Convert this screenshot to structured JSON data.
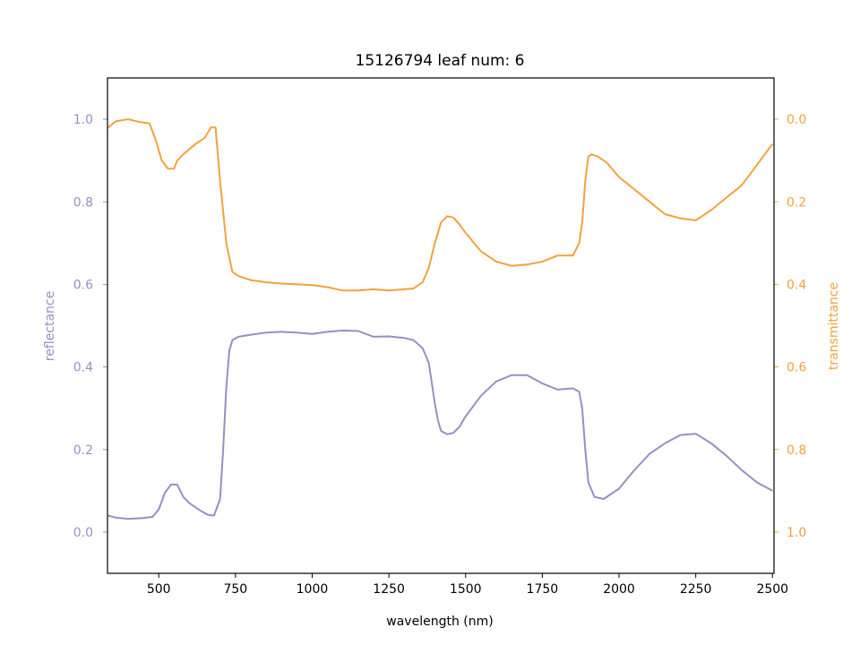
{
  "chart_data": {
    "type": "line",
    "title": "15126794 leaf num: 6",
    "xlabel": "wavelength (nm)",
    "ylabel_left": "reflectance",
    "ylabel_right": "transmittance",
    "xlim": [
      333,
      2505
    ],
    "ylim_left": [
      -0.1,
      1.1
    ],
    "ylim_right": [
      1.1,
      -0.1
    ],
    "right_axis_inverted": true,
    "grid": false,
    "legend": "none",
    "colors": {
      "reflectance": "#9590c4",
      "transmittance": "#f0a33c"
    },
    "x_ticks": [
      "500",
      "750",
      "1000",
      "1250",
      "1500",
      "1750",
      "2000",
      "2250",
      "2500"
    ],
    "y_ticks_left": [
      "0.0",
      "0.2",
      "0.4",
      "0.6",
      "0.8",
      "1.0"
    ],
    "y_ticks_right": [
      "0.0",
      "0.2",
      "0.4",
      "0.6",
      "0.8",
      "1.0"
    ],
    "series": [
      {
        "axis": "left",
        "color": "#9590c4",
        "x": [
          335,
          360,
          400,
          450,
          480,
          500,
          520,
          540,
          560,
          580,
          600,
          620,
          640,
          660,
          680,
          700,
          710,
          720,
          730,
          740,
          760,
          800,
          850,
          900,
          950,
          1000,
          1050,
          1100,
          1150,
          1200,
          1250,
          1300,
          1330,
          1360,
          1380,
          1390,
          1400,
          1410,
          1420,
          1440,
          1460,
          1480,
          1500,
          1550,
          1600,
          1650,
          1700,
          1750,
          1800,
          1850,
          1870,
          1880,
          1890,
          1900,
          1920,
          1950,
          2000,
          2050,
          2100,
          2150,
          2200,
          2250,
          2300,
          2350,
          2400,
          2450,
          2500
        ],
        "values": [
          0.04,
          0.035,
          0.032,
          0.034,
          0.037,
          0.055,
          0.095,
          0.115,
          0.115,
          0.085,
          0.07,
          0.06,
          0.05,
          0.042,
          0.04,
          0.08,
          0.2,
          0.35,
          0.44,
          0.465,
          0.473,
          0.478,
          0.483,
          0.485,
          0.483,
          0.48,
          0.485,
          0.488,
          0.487,
          0.473,
          0.474,
          0.47,
          0.465,
          0.445,
          0.41,
          0.36,
          0.31,
          0.27,
          0.245,
          0.237,
          0.24,
          0.255,
          0.28,
          0.33,
          0.365,
          0.38,
          0.38,
          0.36,
          0.345,
          0.348,
          0.34,
          0.3,
          0.2,
          0.12,
          0.085,
          0.08,
          0.105,
          0.15,
          0.19,
          0.215,
          0.235,
          0.238,
          0.215,
          0.185,
          0.15,
          0.12,
          0.1
        ]
      },
      {
        "axis": "right",
        "color": "#f0a33c",
        "x": [
          335,
          360,
          400,
          440,
          470,
          490,
          510,
          530,
          540,
          550,
          560,
          580,
          620,
          650,
          670,
          685,
          700,
          720,
          740,
          760,
          800,
          850,
          900,
          950,
          1000,
          1050,
          1100,
          1150,
          1200,
          1250,
          1300,
          1330,
          1360,
          1380,
          1400,
          1420,
          1440,
          1460,
          1480,
          1500,
          1550,
          1600,
          1650,
          1700,
          1750,
          1800,
          1850,
          1870,
          1880,
          1890,
          1900,
          1910,
          1930,
          1960,
          2000,
          2050,
          2100,
          2150,
          2200,
          2250,
          2300,
          2350,
          2400,
          2450,
          2500
        ],
        "values": [
          0.02,
          0.005,
          0.0,
          0.007,
          0.01,
          0.05,
          0.1,
          0.12,
          0.12,
          0.12,
          0.1,
          0.085,
          0.06,
          0.045,
          0.02,
          0.02,
          0.15,
          0.3,
          0.37,
          0.38,
          0.39,
          0.395,
          0.398,
          0.4,
          0.402,
          0.407,
          0.415,
          0.415,
          0.412,
          0.415,
          0.412,
          0.41,
          0.395,
          0.36,
          0.3,
          0.25,
          0.235,
          0.238,
          0.255,
          0.275,
          0.32,
          0.345,
          0.355,
          0.352,
          0.345,
          0.33,
          0.33,
          0.3,
          0.25,
          0.15,
          0.09,
          0.085,
          0.09,
          0.105,
          0.14,
          0.17,
          0.2,
          0.23,
          0.24,
          0.245,
          0.22,
          0.19,
          0.16,
          0.11,
          0.06
        ]
      }
    ]
  }
}
